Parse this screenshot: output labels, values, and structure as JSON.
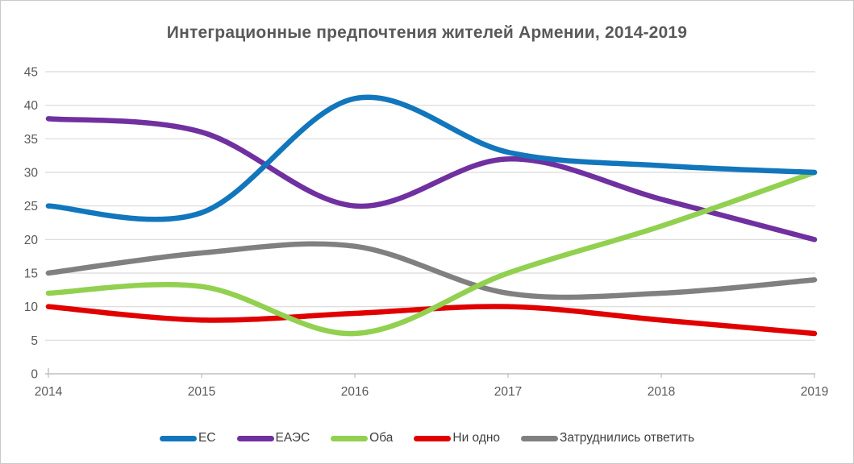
{
  "window": {
    "background": "#ffffff",
    "border_color": "#c9c9c9"
  },
  "chart_data": {
    "type": "line",
    "title": "Интеграционные предпочтения жителей Армении, 2014-2019",
    "line_style": "smooth",
    "grid": "horizontal",
    "legend_position": "bottom",
    "x": [
      2014,
      2015,
      2016,
      2017,
      2018,
      2019
    ],
    "x_tick_labels": [
      "2014",
      "2015",
      "2016",
      "2017",
      "2018",
      "2019"
    ],
    "y_ticks": [
      0,
      5,
      10,
      15,
      20,
      25,
      30,
      35,
      40,
      45
    ],
    "ylim": [
      0,
      45
    ],
    "xlabel": "",
    "ylabel": "",
    "series": [
      {
        "name": "ЕС",
        "color": "#1276bc",
        "values": [
          25,
          24,
          41,
          33,
          31,
          30
        ]
      },
      {
        "name": "ЕАЭС",
        "color": "#7030a0",
        "values": [
          38,
          36,
          25,
          32,
          26,
          20
        ]
      },
      {
        "name": "Оба",
        "color": "#92d050",
        "values": [
          12,
          13,
          6,
          15,
          22,
          30
        ]
      },
      {
        "name": "Ни одно",
        "color": "#e00000",
        "values": [
          10,
          8,
          9,
          10,
          8,
          6
        ]
      },
      {
        "name": "Затруднились ответить",
        "color": "#808080",
        "values": [
          15,
          18,
          19,
          12,
          12,
          14
        ]
      }
    ],
    "style": {
      "gridline_color": "#d9d9d9",
      "axis_color": "#bfbfbf",
      "tick_label_color": "#595959",
      "title_color": "#595959",
      "legend_text_color": "#404040",
      "line_width": 6.5
    }
  }
}
